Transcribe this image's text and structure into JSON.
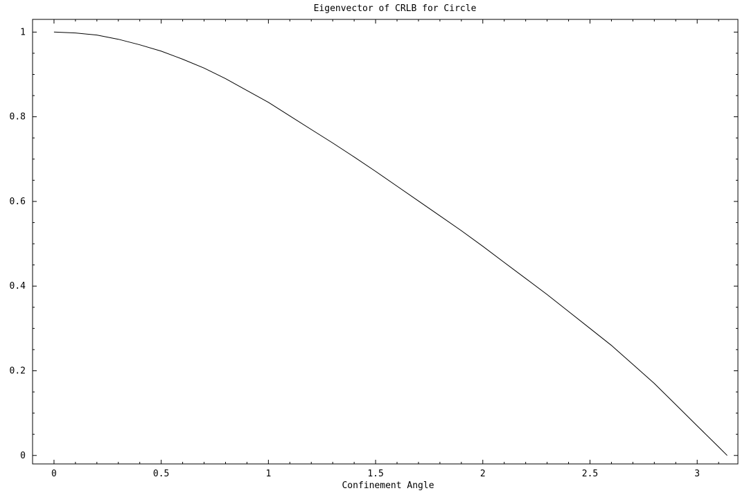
{
  "chart_data": {
    "type": "line",
    "title": "Eigenvector of CRLB for Circle",
    "xlabel": "Confinement Angle",
    "ylabel": "",
    "xlim": [
      -0.1,
      3.19
    ],
    "ylim": [
      -0.02,
      1.03
    ],
    "x_ticks": [
      0,
      0.5,
      1,
      1.5,
      2,
      2.5,
      3
    ],
    "x_tick_labels": [
      "0",
      "0.5",
      "1",
      "1.5",
      "2",
      "2.5",
      "3"
    ],
    "y_ticks": [
      0,
      0.2,
      0.4,
      0.6,
      0.8,
      1
    ],
    "y_tick_labels": [
      "0",
      "0.2",
      "0.4",
      "0.6",
      "0.8",
      "1"
    ],
    "x_minor_step": 0.1,
    "y_minor_step": 0.05,
    "grid": false,
    "legend": "none",
    "colors": {
      "line": "#000000",
      "frame": "#000000",
      "background": "#ffffff"
    },
    "series": [
      {
        "x": [
          0,
          0.1,
          0.2,
          0.3,
          0.4,
          0.5,
          0.6,
          0.7,
          0.8,
          0.9,
          1.0,
          1.1,
          1.2,
          1.3,
          1.4,
          1.5,
          1.6,
          1.7,
          1.8,
          1.9,
          2.0,
          2.1,
          2.2,
          2.3,
          2.4,
          2.5,
          2.6,
          2.7,
          2.8,
          2.9,
          3.0,
          3.1,
          3.14
        ],
        "y": [
          1.0,
          0.998,
          0.993,
          0.983,
          0.97,
          0.955,
          0.936,
          0.915,
          0.89,
          0.862,
          0.834,
          0.802,
          0.77,
          0.738,
          0.705,
          0.671,
          0.636,
          0.601,
          0.566,
          0.531,
          0.494,
          0.456,
          0.418,
          0.38,
          0.34,
          0.3,
          0.26,
          0.215,
          0.17,
          0.12,
          0.07,
          0.02,
          0.0
        ]
      }
    ]
  }
}
